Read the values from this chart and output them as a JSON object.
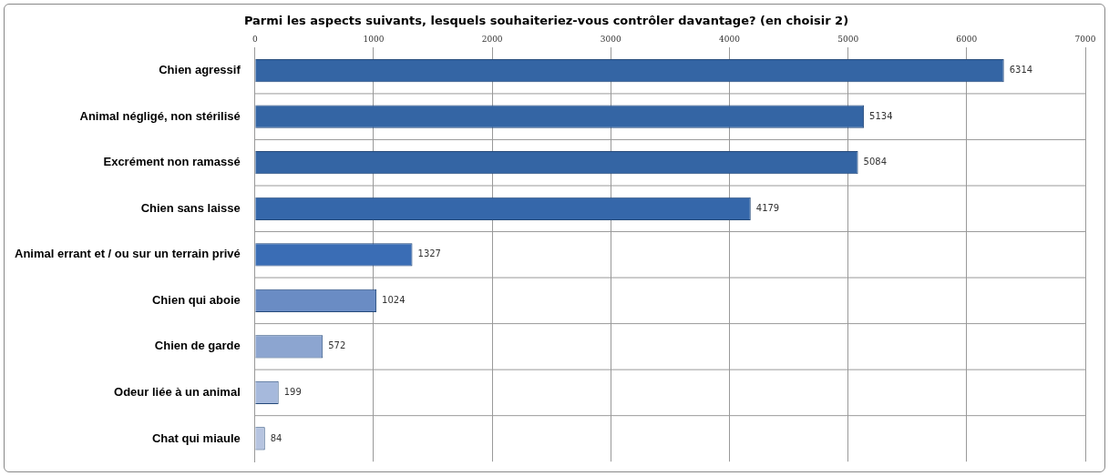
{
  "chart_data": {
    "type": "bar",
    "orientation": "horizontal",
    "title": "Parmi les aspects suivants, lesquels souhaiteriez-vous contrôler davantage? (en choisir 2)",
    "categories": [
      "Chien agressif",
      "Animal négligé, non stérilisé",
      "Excrément non ramassé",
      "Chien sans laisse",
      "Animal errant et / ou sur un terrain privé",
      "Chien qui aboie",
      "Chien de garde",
      "Odeur liée à un animal",
      "Chat qui miaule"
    ],
    "values": [
      6314,
      5134,
      5084,
      4179,
      1327,
      1024,
      572,
      199,
      84
    ],
    "colors": [
      "#3465a4",
      "#3465a4",
      "#3465a4",
      "#3567aa",
      "#3a6db5",
      "#6a8cc4",
      "#8ca5d0",
      "#a6b9dc",
      "#b6c4e0"
    ],
    "xlim": [
      0,
      7000
    ],
    "xticks": [
      0,
      1000,
      2000,
      3000,
      4000,
      5000,
      6000,
      7000
    ],
    "grid": true,
    "data_labels": true
  }
}
